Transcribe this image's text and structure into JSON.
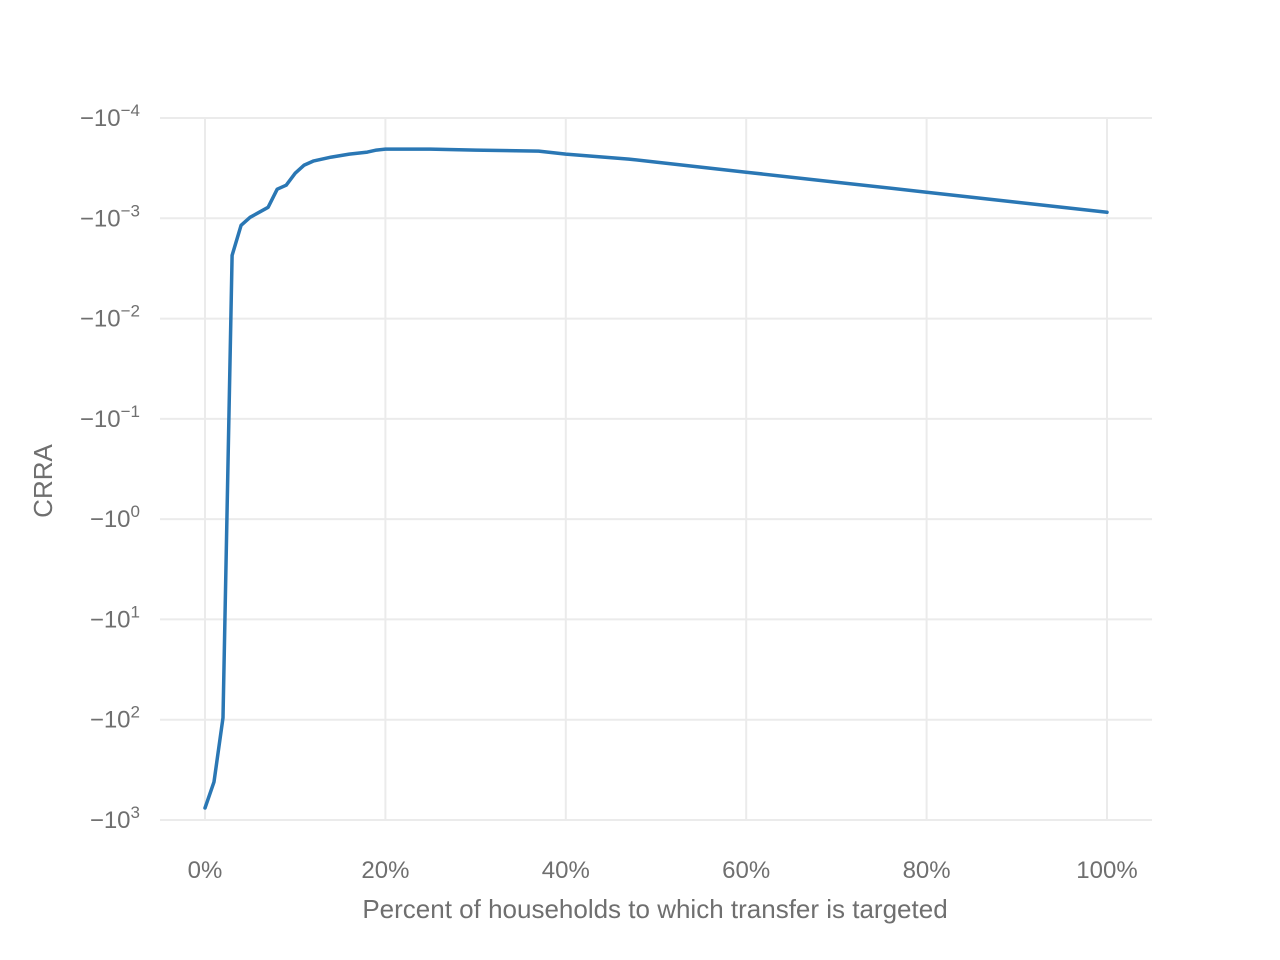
{
  "chart_data": {
    "type": "line",
    "title": "",
    "xlabel": "Percent of households to which transfer is targeted",
    "ylabel": "CRRA",
    "y_scale": "symlog-negative",
    "x_ticks": [
      {
        "value": 0,
        "label": "0%"
      },
      {
        "value": 20,
        "label": "20%"
      },
      {
        "value": 40,
        "label": "40%"
      },
      {
        "value": 60,
        "label": "60%"
      },
      {
        "value": 80,
        "label": "80%"
      },
      {
        "value": 100,
        "label": "100%"
      }
    ],
    "y_ticks": [
      {
        "exp": -4,
        "base": "−10",
        "sup": "−4"
      },
      {
        "exp": -3,
        "base": "−10",
        "sup": "−3"
      },
      {
        "exp": -2,
        "base": "−10",
        "sup": "−2"
      },
      {
        "exp": -1,
        "base": "−10",
        "sup": "−1"
      },
      {
        "exp": 0,
        "base": "−10",
        "sup": "0"
      },
      {
        "exp": 1,
        "base": "−10",
        "sup": "1"
      },
      {
        "exp": 2,
        "base": "−10",
        "sup": "2"
      },
      {
        "exp": 3,
        "base": "−10",
        "sup": "3"
      }
    ],
    "xlim": [
      -5,
      105
    ],
    "ylim_exp": [
      -4,
      3
    ],
    "grid": true,
    "color": "#2a77b4",
    "series": [
      {
        "x": [
          0,
          1,
          2,
          3,
          4,
          5,
          6,
          7,
          8,
          9,
          10,
          11,
          12,
          14,
          16,
          18,
          19,
          20,
          25,
          30,
          37,
          40,
          47,
          50,
          60,
          70,
          80,
          90,
          100
        ],
        "y_exp": [
          2.88,
          2.62,
          1.98,
          -2.63,
          -2.93,
          -3.01,
          -3.06,
          -3.11,
          -3.29,
          -3.33,
          -3.45,
          -3.53,
          -3.57,
          -3.61,
          -3.64,
          -3.66,
          -3.68,
          -3.69,
          -3.69,
          -3.68,
          -3.67,
          -3.64,
          -3.59,
          -3.56,
          -3.46,
          -3.36,
          -3.26,
          -3.16,
          -3.06
        ]
      }
    ]
  }
}
